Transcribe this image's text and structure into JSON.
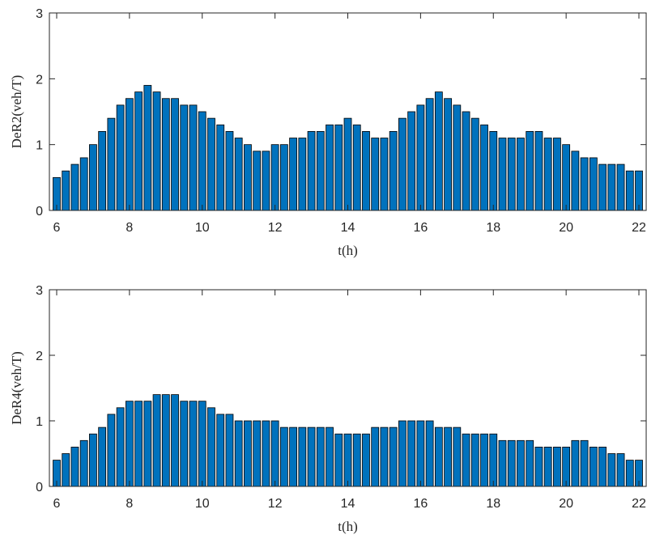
{
  "chart_data": [
    {
      "type": "bar",
      "xlabel": "t(h)",
      "ylabel": "DeR2(veh/T)",
      "color": "#0072bd",
      "edgecolor": "#000000",
      "x": [
        6,
        6.25,
        6.5,
        6.75,
        7,
        7.25,
        7.5,
        7.75,
        8,
        8.25,
        8.5,
        8.75,
        9,
        9.25,
        9.5,
        9.75,
        10,
        10.25,
        10.5,
        10.75,
        11,
        11.25,
        11.5,
        11.75,
        12,
        12.25,
        12.5,
        12.75,
        13,
        13.25,
        13.5,
        13.75,
        14,
        14.25,
        14.5,
        14.75,
        15,
        15.25,
        15.5,
        15.75,
        16,
        16.25,
        16.5,
        16.75,
        17,
        17.25,
        17.5,
        17.75,
        18,
        18.25,
        18.5,
        18.75,
        19,
        19.25,
        19.5,
        19.75,
        20,
        20.25,
        20.5,
        20.75,
        21,
        21.25,
        21.5,
        21.75,
        22
      ],
      "values": [
        0.5,
        0.6,
        0.7,
        0.8,
        1.0,
        1.2,
        1.4,
        1.6,
        1.7,
        1.8,
        1.9,
        1.8,
        1.7,
        1.7,
        1.6,
        1.6,
        1.5,
        1.4,
        1.3,
        1.2,
        1.1,
        1.0,
        0.9,
        0.9,
        1.0,
        1.0,
        1.1,
        1.1,
        1.2,
        1.2,
        1.3,
        1.3,
        1.4,
        1.3,
        1.2,
        1.1,
        1.1,
        1.2,
        1.4,
        1.5,
        1.6,
        1.7,
        1.8,
        1.7,
        1.6,
        1.5,
        1.4,
        1.3,
        1.2,
        1.1,
        1.1,
        1.1,
        1.2,
        1.2,
        1.1,
        1.1,
        1.0,
        0.9,
        0.8,
        0.8,
        0.7,
        0.7,
        0.7,
        0.6,
        0.6
      ],
      "xlim": [
        5.8,
        22.2
      ],
      "xticks": [
        6,
        8,
        10,
        12,
        14,
        16,
        18,
        20,
        22
      ],
      "ylim": [
        0,
        3
      ],
      "yticks": [
        0,
        1,
        2,
        3
      ]
    },
    {
      "type": "bar",
      "xlabel": "t(h)",
      "ylabel": "DeR4(veh/T)",
      "color": "#0072bd",
      "edgecolor": "#000000",
      "x": [
        6,
        6.25,
        6.5,
        6.75,
        7,
        7.25,
        7.5,
        7.75,
        8,
        8.25,
        8.5,
        8.75,
        9,
        9.25,
        9.5,
        9.75,
        10,
        10.25,
        10.5,
        10.75,
        11,
        11.25,
        11.5,
        11.75,
        12,
        12.25,
        12.5,
        12.75,
        13,
        13.25,
        13.5,
        13.75,
        14,
        14.25,
        14.5,
        14.75,
        15,
        15.25,
        15.5,
        15.75,
        16,
        16.25,
        16.5,
        16.75,
        17,
        17.25,
        17.5,
        17.75,
        18,
        18.25,
        18.5,
        18.75,
        19,
        19.25,
        19.5,
        19.75,
        20,
        20.25,
        20.5,
        20.75,
        21,
        21.25,
        21.5,
        21.75,
        22
      ],
      "values": [
        0.4,
        0.5,
        0.6,
        0.7,
        0.8,
        0.9,
        1.1,
        1.2,
        1.3,
        1.3,
        1.3,
        1.4,
        1.4,
        1.4,
        1.3,
        1.3,
        1.3,
        1.2,
        1.1,
        1.1,
        1.0,
        1.0,
        1.0,
        1.0,
        1.0,
        0.9,
        0.9,
        0.9,
        0.9,
        0.9,
        0.9,
        0.8,
        0.8,
        0.8,
        0.8,
        0.9,
        0.9,
        0.9,
        1.0,
        1.0,
        1.0,
        1.0,
        0.9,
        0.9,
        0.9,
        0.8,
        0.8,
        0.8,
        0.8,
        0.7,
        0.7,
        0.7,
        0.7,
        0.6,
        0.6,
        0.6,
        0.6,
        0.7,
        0.7,
        0.6,
        0.6,
        0.5,
        0.5,
        0.4,
        0.4
      ],
      "xlim": [
        5.8,
        22.2
      ],
      "xticks": [
        6,
        8,
        10,
        12,
        14,
        16,
        18,
        20,
        22
      ],
      "ylim": [
        0,
        3
      ],
      "yticks": [
        0,
        1,
        2,
        3
      ]
    }
  ]
}
